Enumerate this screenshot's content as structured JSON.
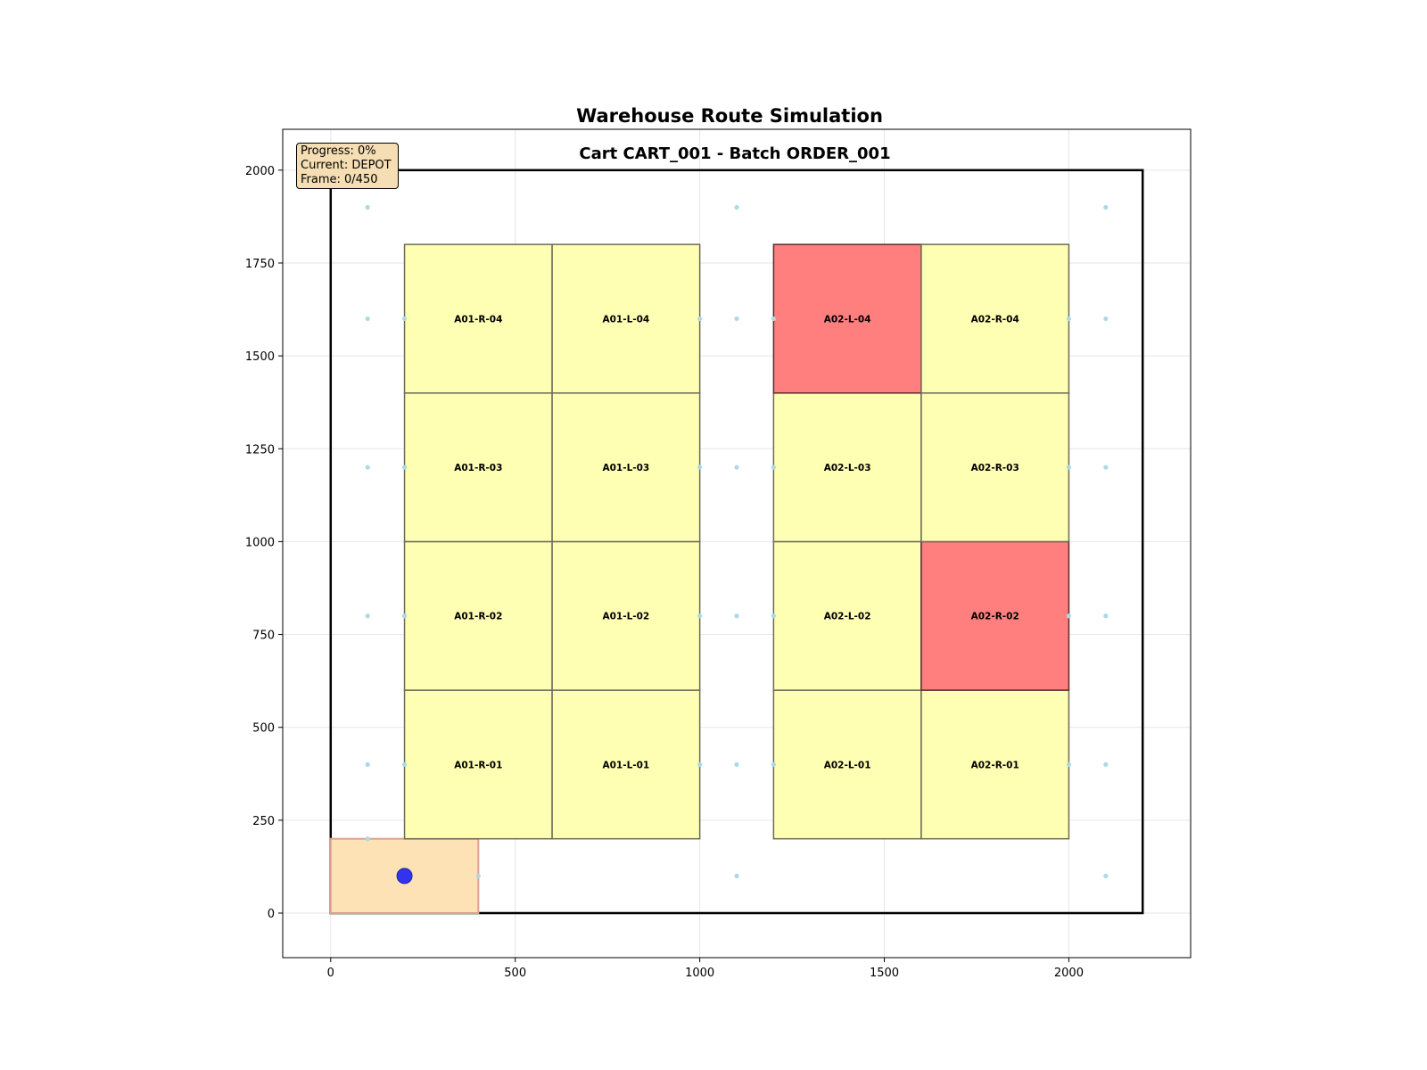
{
  "chart_data": {
    "type": "scatter",
    "title": "Warehouse Route Simulation",
    "subtitle": "Cart CART_001 - Batch ORDER_001",
    "xlabel": "",
    "ylabel": "",
    "xlim": [
      -130,
      2330
    ],
    "ylim": [
      -120,
      2110
    ],
    "x_ticks": [
      0,
      500,
      1000,
      1500,
      2000
    ],
    "y_ticks": [
      0,
      250,
      500,
      750,
      1000,
      1250,
      1500,
      1750,
      2000
    ],
    "grid": true,
    "warehouse_boundary": {
      "x0": 0,
      "y0": 0,
      "x1": 2200,
      "y1": 2000
    },
    "depot": {
      "x0": 0,
      "y0": 0,
      "x1": 400,
      "y1": 200,
      "color": "#fde2b6"
    },
    "locations": [
      {
        "label": "A01-R-01",
        "x0": 200,
        "y0": 200,
        "x1": 600,
        "y1": 600,
        "target": false
      },
      {
        "label": "A01-L-01",
        "x0": 600,
        "y0": 200,
        "x1": 1000,
        "y1": 600,
        "target": false
      },
      {
        "label": "A01-R-02",
        "x0": 200,
        "y0": 600,
        "x1": 600,
        "y1": 1000,
        "target": false
      },
      {
        "label": "A01-L-02",
        "x0": 600,
        "y0": 600,
        "x1": 1000,
        "y1": 1000,
        "target": false
      },
      {
        "label": "A01-R-03",
        "x0": 200,
        "y0": 1000,
        "x1": 600,
        "y1": 1400,
        "target": false
      },
      {
        "label": "A01-L-03",
        "x0": 600,
        "y0": 1000,
        "x1": 1000,
        "y1": 1400,
        "target": false
      },
      {
        "label": "A01-R-04",
        "x0": 200,
        "y0": 1400,
        "x1": 600,
        "y1": 1800,
        "target": false
      },
      {
        "label": "A01-L-04",
        "x0": 600,
        "y0": 1400,
        "x1": 1000,
        "y1": 1800,
        "target": false
      },
      {
        "label": "A02-L-01",
        "x0": 1200,
        "y0": 200,
        "x1": 1600,
        "y1": 600,
        "target": false
      },
      {
        "label": "A02-R-01",
        "x0": 1600,
        "y0": 200,
        "x1": 2000,
        "y1": 600,
        "target": false
      },
      {
        "label": "A02-L-02",
        "x0": 1200,
        "y0": 600,
        "x1": 1600,
        "y1": 1000,
        "target": false
      },
      {
        "label": "A02-R-02",
        "x0": 1600,
        "y0": 600,
        "x1": 2000,
        "y1": 1000,
        "target": true
      },
      {
        "label": "A02-L-03",
        "x0": 1200,
        "y0": 1000,
        "x1": 1600,
        "y1": 1400,
        "target": false
      },
      {
        "label": "A02-R-03",
        "x0": 1600,
        "y0": 1000,
        "x1": 2000,
        "y1": 1400,
        "target": false
      },
      {
        "label": "A02-L-04",
        "x0": 1200,
        "y0": 1400,
        "x1": 1600,
        "y1": 1800,
        "target": true
      },
      {
        "label": "A02-R-04",
        "x0": 1600,
        "y0": 1400,
        "x1": 2000,
        "y1": 1800,
        "target": false
      }
    ],
    "waypoints": [
      [
        100,
        1900
      ],
      [
        1100,
        1900
      ],
      [
        2100,
        1900
      ],
      [
        100,
        1600
      ],
      [
        200,
        1600
      ],
      [
        1000,
        1600
      ],
      [
        1100,
        1600
      ],
      [
        1200,
        1600
      ],
      [
        2000,
        1600
      ],
      [
        2100,
        1600
      ],
      [
        100,
        1200
      ],
      [
        200,
        1200
      ],
      [
        1000,
        1200
      ],
      [
        1100,
        1200
      ],
      [
        1200,
        1200
      ],
      [
        2000,
        1200
      ],
      [
        2100,
        1200
      ],
      [
        100,
        800
      ],
      [
        200,
        800
      ],
      [
        1000,
        800
      ],
      [
        1100,
        800
      ],
      [
        1200,
        800
      ],
      [
        2000,
        800
      ],
      [
        2100,
        800
      ],
      [
        100,
        400
      ],
      [
        200,
        400
      ],
      [
        1000,
        400
      ],
      [
        1100,
        400
      ],
      [
        1200,
        400
      ],
      [
        2000,
        400
      ],
      [
        2100,
        400
      ],
      [
        100,
        200
      ],
      [
        400,
        100
      ],
      [
        1100,
        100
      ],
      [
        2100,
        100
      ]
    ],
    "cart_position": {
      "x": 200,
      "y": 100
    },
    "colors": {
      "location": "#ffffb3",
      "target": "#ff7f7f",
      "depot": "#fde2b6",
      "waypoint": "#add8e6",
      "cart": "#3333ee"
    }
  },
  "info": {
    "progress": "Progress: 0%",
    "current": "Current: DEPOT",
    "frame": "Frame: 0/450"
  }
}
